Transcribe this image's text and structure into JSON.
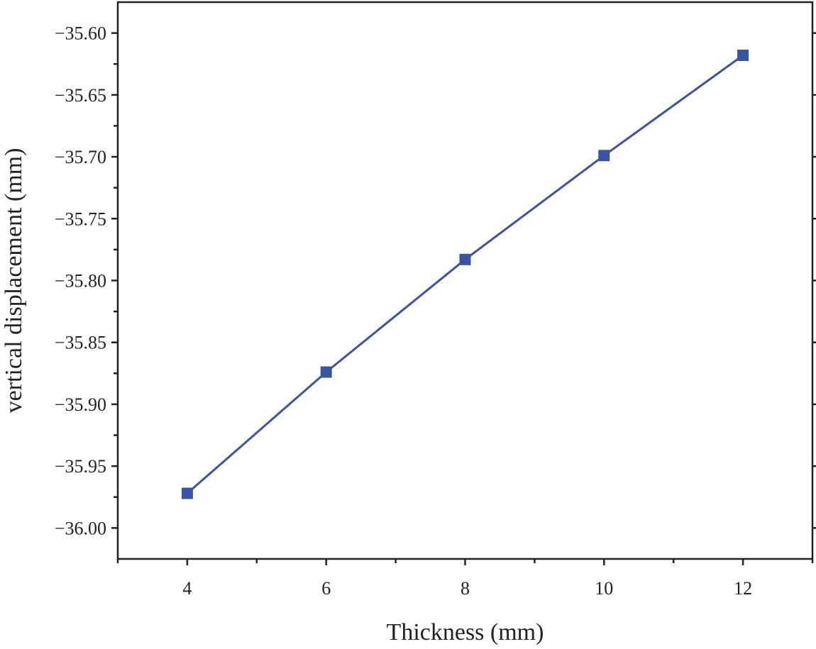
{
  "chart_data": {
    "type": "line",
    "title": "",
    "xlabel": "Thickness (mm)",
    "ylabel": "vertical displacement (mm)",
    "xlim": [
      3,
      13
    ],
    "ylim": [
      -36.025,
      -35.575
    ],
    "x_ticks": [
      4,
      6,
      8,
      10,
      12
    ],
    "x_minor_ticks": [
      3,
      5,
      7,
      9,
      11,
      13
    ],
    "y_ticks": [
      -35.6,
      -35.65,
      -35.7,
      -35.75,
      -35.8,
      -35.85,
      -35.9,
      -35.95,
      -36.0
    ],
    "y_tick_labels": [
      "−35.60",
      "−35.65",
      "−35.70",
      "−35.75",
      "−35.80",
      "−35.85",
      "−35.90",
      "−35.95",
      "−36.00"
    ],
    "grid": false,
    "legend": "none",
    "series": [
      {
        "color": "#3a54a4",
        "marker": "square",
        "x": [
          4,
          6,
          8,
          10,
          12
        ],
        "values": [
          -35.972,
          -35.874,
          -35.783,
          -35.699,
          -35.618
        ]
      }
    ]
  }
}
